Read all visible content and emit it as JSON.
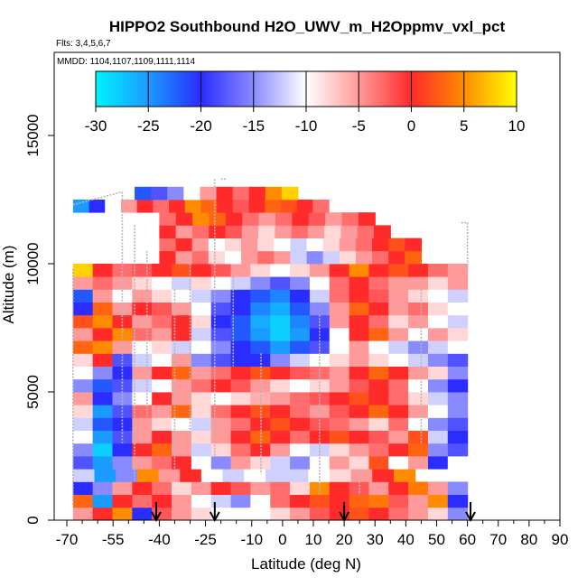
{
  "chart_data": {
    "type": "heatmap",
    "title": "HIPPO2 Southbound H2O_UWV_m_H2Oppmv_vxl_pct",
    "flights_label": "Flts: 3,4,5,6,7",
    "mmdd_label": "MMDD: 1104,1107,1109,1111,1114",
    "xlabel": "Latitude (deg N)",
    "ylabel": "Altitude (m)",
    "xlim": [
      -70,
      90
    ],
    "ylim": [
      0,
      17500
    ],
    "x_ticks": [
      -70,
      -55,
      -40,
      -25,
      -10,
      0,
      10,
      20,
      30,
      40,
      50,
      60,
      70,
      80,
      90
    ],
    "x_minor_ticks": [
      -65,
      -60,
      -50,
      -45,
      -35,
      -30,
      -20,
      -15,
      -5,
      5,
      15,
      25,
      35,
      45,
      55,
      65,
      75,
      85
    ],
    "y_ticks": [
      0,
      5000,
      10000,
      15000
    ],
    "colorbar": {
      "min": -30,
      "max": 10,
      "ticks": [
        -30,
        -25,
        -20,
        -15,
        -10,
        -5,
        0,
        5,
        10
      ],
      "stops": [
        {
          "v": -30,
          "color": "#00f2ff"
        },
        {
          "v": -25,
          "color": "#1a9bff"
        },
        {
          "v": -20,
          "color": "#2b2cff"
        },
        {
          "v": -15,
          "color": "#8a8aff"
        },
        {
          "v": -10,
          "color": "#ffffff"
        },
        {
          "v": -5,
          "color": "#ff9a9a"
        },
        {
          "v": 0,
          "color": "#ff2a2a"
        },
        {
          "v": 5,
          "color": "#ff8c00"
        },
        {
          "v": 10,
          "color": "#ffff00"
        }
      ]
    },
    "arrow_latitudes": [
      -41,
      -22,
      20,
      61
    ],
    "layers": [
      {
        "alt": 250,
        "lat_min": -68,
        "lat_max": 60,
        "values": [
          -5,
          0,
          5,
          -20,
          -2,
          -5,
          -8,
          -10,
          -10,
          -10,
          -8,
          -5,
          -2,
          0,
          2,
          0,
          -3,
          -5,
          -8,
          -15
        ]
      },
      {
        "alt": 750,
        "lat_min": -68,
        "lat_max": 60,
        "values": [
          3,
          -25,
          0,
          -3,
          0,
          -5,
          -10,
          -12,
          -15,
          -10,
          -3,
          0,
          2,
          0,
          3,
          4,
          -2,
          -5,
          5,
          -20
        ]
      },
      {
        "alt": 1250,
        "lat_min": -68,
        "lat_max": 60,
        "values": [
          -20,
          -15,
          -5,
          0,
          -3,
          -8,
          -5,
          0,
          -2,
          -5,
          -3,
          -8,
          5,
          0,
          -2,
          -5,
          0,
          4,
          -5,
          -15
        ]
      },
      {
        "alt": 1750,
        "lat_min": -68,
        "lat_max": 43,
        "values": [
          -12,
          -25,
          -15,
          5,
          -5,
          0,
          -10,
          -12,
          -10,
          -12,
          -12,
          -10,
          -8,
          -5,
          0,
          5
        ]
      },
      {
        "alt": 2250,
        "lat_min": -68,
        "lat_max": 60,
        "values": [
          -18,
          -25,
          -15,
          -5,
          -3,
          0,
          -10,
          -15,
          -5,
          -8,
          -12,
          -15,
          -10,
          -5,
          -8,
          2,
          -10,
          -5,
          -20,
          -10
        ]
      },
      {
        "alt": 2750,
        "lat_min": -68,
        "lat_max": 60,
        "values": [
          -15,
          -28,
          -20,
          0,
          3,
          -5,
          -12,
          -8,
          -3,
          0,
          -5,
          -10,
          -12,
          -8,
          -5,
          -3,
          0,
          3,
          -15,
          -18
        ]
      },
      {
        "alt": 3250,
        "lat_min": -68,
        "lat_max": 60,
        "values": [
          -10,
          -25,
          -18,
          -5,
          0,
          -5,
          -8,
          -5,
          0,
          3,
          0,
          -3,
          0,
          2,
          0,
          -2,
          -5,
          2,
          -12,
          -20
        ]
      },
      {
        "alt": 3750,
        "lat_min": -68,
        "lat_max": 60,
        "values": [
          -12,
          -22,
          -20,
          -5,
          -8,
          -10,
          -12,
          -5,
          -3,
          0,
          2,
          0,
          -2,
          -3,
          -5,
          -8,
          -3,
          -10,
          -15,
          -18
        ]
      },
      {
        "alt": 4250,
        "lat_min": -68,
        "lat_max": 60,
        "values": [
          -8,
          -25,
          -18,
          -3,
          -5,
          3,
          -8,
          -3,
          0,
          2,
          0,
          -3,
          -5,
          -2,
          0,
          3,
          0,
          -5,
          -10,
          -15
        ]
      },
      {
        "alt": 4750,
        "lat_min": -68,
        "lat_max": 60,
        "values": [
          -5,
          -20,
          -15,
          -10,
          0,
          -5,
          -8,
          -10,
          -8,
          -6,
          -5,
          -3,
          -2,
          0,
          2,
          0,
          -3,
          -8,
          -12,
          -15
        ]
      },
      {
        "alt": 5250,
        "lat_min": -68,
        "lat_max": 60,
        "values": [
          -15,
          -22,
          -18,
          -12,
          -10,
          -5,
          -3,
          0,
          -2,
          -5,
          -8,
          -10,
          -8,
          -5,
          -2,
          0,
          -3,
          -10,
          -15,
          -20
        ]
      },
      {
        "alt": 5750,
        "lat_min": -68,
        "lat_max": 60,
        "values": [
          -10,
          -15,
          -20,
          -5,
          0,
          3,
          -5,
          -3,
          0,
          2,
          0,
          -2,
          -3,
          -5,
          0,
          3,
          0,
          -5,
          -8,
          -15
        ]
      },
      {
        "alt": 6250,
        "lat_min": -68,
        "lat_max": 60,
        "values": [
          -8,
          0,
          -18,
          -12,
          -10,
          -5,
          -15,
          -18,
          -20,
          -20,
          -15,
          -12,
          -10,
          -8,
          -5,
          -8,
          -10,
          -12,
          -15,
          -18
        ]
      },
      {
        "alt": 6750,
        "lat_min": -68,
        "lat_max": 60,
        "values": [
          3,
          5,
          -5,
          -10,
          -8,
          -12,
          -10,
          -15,
          -20,
          -22,
          -25,
          -22,
          -18,
          -10,
          -5,
          -10,
          -12,
          -15,
          -12,
          -10
        ]
      },
      {
        "alt": 7250,
        "lat_min": -68,
        "lat_max": 60,
        "values": [
          -5,
          0,
          5,
          -3,
          -5,
          0,
          -12,
          -18,
          -22,
          -25,
          -28,
          -25,
          -20,
          -10,
          0,
          3,
          -5,
          -10,
          -5,
          -8
        ]
      },
      {
        "alt": 7750,
        "lat_min": -68,
        "lat_max": 60,
        "values": [
          2,
          5,
          0,
          -5,
          -3,
          0,
          -8,
          -20,
          -22,
          -26,
          -28,
          -24,
          -18,
          -5,
          0,
          -3,
          -8,
          -5,
          -10,
          -12
        ]
      },
      {
        "alt": 8250,
        "lat_min": -68,
        "lat_max": 60,
        "values": [
          -20,
          3,
          -5,
          0,
          -2,
          -5,
          -10,
          -18,
          -20,
          -24,
          -26,
          -22,
          -15,
          -5,
          3,
          0,
          -5,
          -3,
          -8,
          -10
        ]
      },
      {
        "alt": 8750,
        "lat_min": -68,
        "lat_max": 60,
        "values": [
          -22,
          -5,
          -10,
          -5,
          -8,
          -10,
          -12,
          -15,
          -20,
          -22,
          -24,
          -20,
          -12,
          -3,
          0,
          -2,
          -5,
          -8,
          -10,
          -12
        ]
      },
      {
        "alt": 9250,
        "lat_min": -68,
        "lat_max": 60,
        "values": [
          -5,
          -3,
          -5,
          -8,
          -10,
          -12,
          -8,
          -10,
          -12,
          -15,
          -18,
          -15,
          -10,
          -3,
          0,
          -3,
          -5,
          -5,
          -8,
          -5
        ]
      },
      {
        "alt": 9750,
        "lat_min": -68,
        "lat_max": 60,
        "values": [
          8,
          0,
          -3,
          -2,
          0,
          2,
          0,
          -2,
          -5,
          -8,
          -10,
          -8,
          -5,
          0,
          5,
          0,
          2,
          0,
          -3,
          -5
        ]
      },
      {
        "alt": 10250,
        "lat_min": -40,
        "lat_max": 45,
        "values": [
          0,
          -5,
          -3,
          -8,
          -10,
          -5,
          -3,
          -5,
          -12,
          -15,
          -12,
          -8,
          -5,
          -3,
          0,
          3
        ]
      },
      {
        "alt": 10750,
        "lat_min": -40,
        "lat_max": 45,
        "values": [
          -3,
          0,
          -5,
          -10,
          -8,
          -5,
          -8,
          -10,
          -12,
          -10,
          -8,
          -5,
          -3,
          0,
          2,
          0
        ]
      },
      {
        "alt": 11250,
        "lat_min": -40,
        "lat_max": 35,
        "values": [
          0,
          -5,
          -3,
          0,
          -2,
          -5,
          -8,
          -5,
          -3,
          -5,
          -8,
          -5,
          -3,
          0
        ]
      },
      {
        "alt": 11750,
        "lat_min": -40,
        "lat_max": 30,
        "values": [
          -3,
          0,
          5,
          3,
          0,
          -3,
          -5,
          -3,
          0,
          -2,
          -5,
          -3,
          0
        ]
      },
      {
        "alt": 12250,
        "lat_min": -68,
        "lat_max": 15,
        "values": [
          -25,
          -20,
          -10,
          -5,
          0,
          -3,
          0,
          5,
          3,
          0,
          -2,
          0,
          3,
          2,
          0,
          -3
        ]
      },
      {
        "alt": 12750,
        "lat_min": -48,
        "lat_max": 5,
        "values": [
          -22,
          -18,
          -15,
          -10,
          -5,
          0,
          -3,
          0,
          5,
          8
        ]
      }
    ],
    "flight_track_segments": [
      [
        [
          -68,
          12300
        ],
        [
          -52,
          12800
        ]
      ],
      [
        [
          -52,
          12800
        ],
        [
          -52,
          3000
        ]
      ],
      [
        [
          -48,
          11500
        ],
        [
          -48,
          1500
        ]
      ],
      [
        [
          -44,
          10500
        ],
        [
          -44,
          4000
        ]
      ],
      [
        [
          -35,
          9000
        ],
        [
          -35,
          2000
        ]
      ],
      [
        [
          -30,
          10000
        ],
        [
          -30,
          3000
        ]
      ],
      [
        [
          -22,
          13300
        ],
        [
          -22,
          2500
        ]
      ],
      [
        [
          -20,
          13300
        ],
        [
          -18,
          13300
        ]
      ],
      [
        [
          -16,
          9500
        ],
        [
          -16,
          6000
        ]
      ],
      [
        [
          -7,
          6500
        ],
        [
          -7,
          1800
        ]
      ],
      [
        [
          12,
          8000
        ],
        [
          12,
          1000
        ]
      ],
      [
        [
          25,
          2000
        ],
        [
          25,
          1000
        ]
      ],
      [
        [
          45,
          9000
        ],
        [
          45,
          3000
        ]
      ],
      [
        [
          58,
          11600
        ],
        [
          60,
          11600
        ]
      ],
      [
        [
          60,
          11600
        ],
        [
          60,
          9800
        ]
      ],
      [
        [
          -68,
          9800
        ],
        [
          -68,
          600
        ]
      ]
    ]
  }
}
